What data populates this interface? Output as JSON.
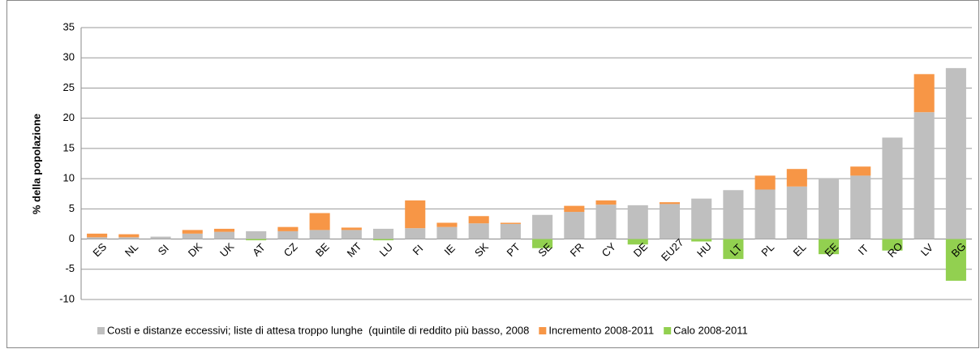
{
  "chart_data": {
    "type": "stacked_bar",
    "y_label": "% della popolazione",
    "categories": [
      "ES",
      "NL",
      "SI",
      "DK",
      "UK",
      "AT",
      "CZ",
      "BE",
      "MT",
      "LU",
      "FI",
      "IE",
      "SK",
      "PT",
      "SE",
      "FR",
      "CY",
      "DE",
      "EU27",
      "HU",
      "LT",
      "PL",
      "EL",
      "EE",
      "IT",
      "RO",
      "LV",
      "BG"
    ],
    "series": [
      {
        "name": "Costi e distanze eccessivi; liste di attesa troppo lunghe  (quintile di reddito più basso, 2008",
        "color": "#bfbfbf",
        "values": [
          0.3,
          0.3,
          0.4,
          0.9,
          1.2,
          1.3,
          1.3,
          1.5,
          1.5,
          1.7,
          1.8,
          2.0,
          2.6,
          2.5,
          4.0,
          4.5,
          5.7,
          5.6,
          5.8,
          6.7,
          8.1,
          8.2,
          8.7,
          10.1,
          10.5,
          16.8,
          21.0,
          28.3
        ]
      },
      {
        "name": "Incremento 2008-2011",
        "color": "#f79646",
        "values": [
          0.6,
          0.5,
          0,
          0.6,
          0.5,
          0,
          0.7,
          2.8,
          0.4,
          0,
          4.6,
          0.7,
          1.2,
          0.2,
          0,
          1.0,
          0.7,
          0,
          0.3,
          0,
          0,
          2.3,
          2.9,
          0,
          1.5,
          0,
          6.3,
          0
        ]
      },
      {
        "name": "Calo 2008-2011",
        "color": "#92d050",
        "values": [
          0,
          0,
          0,
          0,
          0,
          -0.2,
          0,
          0,
          0,
          -0.2,
          0,
          0,
          0,
          0,
          -1.5,
          0,
          0,
          -0.9,
          0,
          -0.4,
          -3.3,
          0,
          0,
          -2.5,
          0,
          -1.9,
          0,
          -6.9
        ]
      }
    ],
    "ylim": [
      -10,
      35
    ],
    "yticks": [
      -10,
      -5,
      0,
      5,
      10,
      15,
      20,
      25,
      30,
      35
    ],
    "grid": true
  }
}
